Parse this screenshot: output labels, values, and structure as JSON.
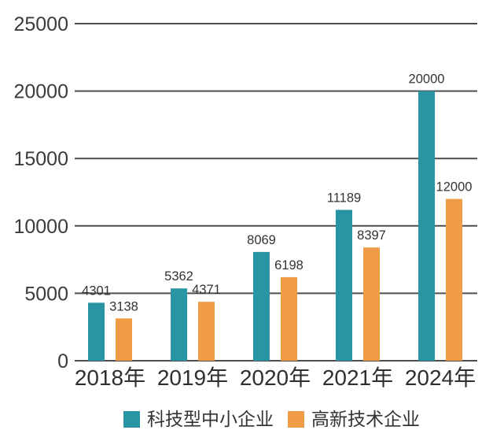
{
  "chart_data": {
    "type": "bar",
    "title": "",
    "categories": [
      "2018年",
      "2019年",
      "2020年",
      "2021年",
      "2024年"
    ],
    "series": [
      {
        "name": "科技型中小企业",
        "color": "#2995a4",
        "values": [
          4301,
          5362,
          8069,
          11189,
          20000
        ]
      },
      {
        "name": "高新技术企业",
        "color": "#f09c46",
        "values": [
          3138,
          4371,
          6198,
          8397,
          12000
        ]
      }
    ],
    "data_labels": [
      "4301",
      "5362",
      "8069",
      "11189",
      "20000",
      "3138",
      "4371",
      "6198",
      "8397",
      "12000"
    ],
    "xlabel": "",
    "ylabel": "",
    "ylim": [
      0,
      25000
    ],
    "y_ticks": [
      0,
      5000,
      10000,
      15000,
      20000,
      25000
    ],
    "y_tick_labels": [
      "0",
      "5000",
      "10000",
      "15000",
      "20000",
      "25000"
    ],
    "grid": "horizontal",
    "legend_position": "bottom",
    "colors": {
      "grid_line": "#4f4f4f",
      "axis_line": "#4f4f4f",
      "tick_text": "#3b3b3b",
      "label_text": "#333333",
      "background": "#ffffff"
    }
  }
}
